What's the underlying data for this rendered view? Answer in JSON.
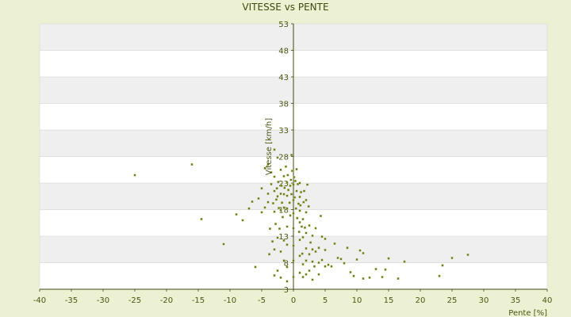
{
  "chart_data": {
    "type": "scatter",
    "title": "VITESSE vs PENTE",
    "xlabel": "Pente [%]",
    "ylabel": "Vitesse [km/h]",
    "xlim": [
      -40,
      40
    ],
    "ylim": [
      3,
      53
    ],
    "x_ticks": [
      "-40",
      "-35",
      "-30",
      "-25",
      "-20",
      "-15",
      "-10",
      "-5",
      "0",
      "5",
      "10",
      "15",
      "20",
      "25",
      "30",
      "35",
      "40"
    ],
    "y_ticks": [
      "3",
      "8",
      "13",
      "18",
      "23",
      "28",
      "33",
      "38",
      "43",
      "48",
      "53"
    ],
    "grid": "horizontal alternating bands",
    "legend": "none",
    "colors": {
      "background": "#ecf1d3",
      "plot_band_light": "#ffffff",
      "plot_band_shaded": "#efefef",
      "axis": "#3f4a0f",
      "marker": "#6a7a0e"
    },
    "points": [
      [
        -25,
        24.5
      ],
      [
        -16,
        26.5
      ],
      [
        -14.5,
        16.2
      ],
      [
        -11,
        11.5
      ],
      [
        -9,
        17.1
      ],
      [
        -8,
        16
      ],
      [
        -7,
        18.2
      ],
      [
        -6.5,
        19.5
      ],
      [
        -6,
        7.2
      ],
      [
        -5.5,
        20.1
      ],
      [
        -5,
        17.5
      ],
      [
        -5,
        22
      ],
      [
        -4.5,
        18.4
      ],
      [
        -4.5,
        25.8
      ],
      [
        -4,
        19.4
      ],
      [
        -4,
        21
      ],
      [
        -4,
        26.5
      ],
      [
        -3.8,
        9.6
      ],
      [
        -3.7,
        14.4
      ],
      [
        -3.5,
        22.8
      ],
      [
        -3.5,
        25
      ],
      [
        -3.3,
        12
      ],
      [
        -3.2,
        19.2
      ],
      [
        -3,
        5.6
      ],
      [
        -3,
        10.5
      ],
      [
        -3,
        17.6
      ],
      [
        -3,
        21.5
      ],
      [
        -3,
        24.2
      ],
      [
        -3,
        29.3
      ],
      [
        -2.8,
        15.3
      ],
      [
        -2.7,
        19.9
      ],
      [
        -2.6,
        22
      ],
      [
        -2.5,
        6.5
      ],
      [
        -2.5,
        12.7
      ],
      [
        -2.5,
        20.5
      ],
      [
        -2.5,
        27.8
      ],
      [
        -2.4,
        23.2
      ],
      [
        -2.3,
        18.3
      ],
      [
        -2.2,
        14.4
      ],
      [
        -2,
        5.2
      ],
      [
        -2,
        10.1
      ],
      [
        -2,
        17.9
      ],
      [
        -2,
        21
      ],
      [
        -2,
        25.5
      ],
      [
        -1.9,
        22.5
      ],
      [
        -1.8,
        19.3
      ],
      [
        -1.7,
        16.6
      ],
      [
        -1.5,
        8.4
      ],
      [
        -1.5,
        12.2
      ],
      [
        -1.5,
        18.4
      ],
      [
        -1.5,
        20.9
      ],
      [
        -1.5,
        24.3
      ],
      [
        -1.4,
        22.1
      ],
      [
        -1.2,
        26.1
      ],
      [
        -1,
        4.5
      ],
      [
        -1,
        7.2
      ],
      [
        -1,
        11.4
      ],
      [
        -1,
        14.8
      ],
      [
        -1,
        18.2
      ],
      [
        -1,
        20.6
      ],
      [
        -1,
        23.1
      ],
      [
        -0.9,
        24.5
      ],
      [
        -0.8,
        21.7
      ],
      [
        -0.6,
        19.3
      ],
      [
        -0.5,
        16.9
      ],
      [
        -0.5,
        22.5
      ],
      [
        -0.4,
        23.6
      ],
      [
        -0.3,
        20.9
      ],
      [
        -0.3,
        28.3
      ],
      [
        -0.2,
        25.3
      ],
      [
        0,
        5.3
      ],
      [
        0,
        8.4
      ],
      [
        0,
        11.2
      ],
      [
        0,
        14.5
      ],
      [
        0,
        17.3
      ],
      [
        0,
        19.8
      ],
      [
        0,
        22.7
      ],
      [
        0.1,
        24.1
      ],
      [
        0.2,
        20.3
      ],
      [
        0.3,
        23.4
      ],
      [
        0.4,
        18.2
      ],
      [
        0.5,
        21.5
      ],
      [
        0.5,
        25.6
      ],
      [
        0.6,
        16.4
      ],
      [
        0.7,
        22.8
      ],
      [
        0.8,
        19.1
      ],
      [
        0.9,
        13.8
      ],
      [
        1,
        6.1
      ],
      [
        1,
        9.3
      ],
      [
        1,
        12.3
      ],
      [
        1,
        15.6
      ],
      [
        1,
        17.8
      ],
      [
        1,
        20.4
      ],
      [
        1,
        23
      ],
      [
        1.1,
        18.8
      ],
      [
        1.2,
        21.3
      ],
      [
        1.3,
        14.8
      ],
      [
        1.4,
        9.7
      ],
      [
        1.5,
        5.3
      ],
      [
        1.5,
        7.7
      ],
      [
        1.5,
        12.8
      ],
      [
        1.5,
        16.2
      ],
      [
        1.6,
        19.4
      ],
      [
        1.7,
        21.5
      ],
      [
        1.8,
        14.6
      ],
      [
        2,
        5.8
      ],
      [
        2,
        8.4
      ],
      [
        2,
        10.7
      ],
      [
        2,
        13.6
      ],
      [
        2,
        17.5
      ],
      [
        2,
        19.8
      ],
      [
        2.2,
        22.7
      ],
      [
        2.4,
        18.6
      ],
      [
        2.5,
        6.5
      ],
      [
        2.5,
        9.6
      ],
      [
        2.5,
        15
      ],
      [
        2.7,
        11.8
      ],
      [
        3,
        4.8
      ],
      [
        3,
        8.2
      ],
      [
        3,
        10.5
      ],
      [
        3,
        13.1
      ],
      [
        3.3,
        7.3
      ],
      [
        3.5,
        10.1
      ],
      [
        3.5,
        14.5
      ],
      [
        4,
        5.8
      ],
      [
        4,
        8
      ],
      [
        4,
        10.8
      ],
      [
        4.3,
        16.8
      ],
      [
        4.5,
        8.5
      ],
      [
        4.5,
        12.9
      ],
      [
        5,
        7.3
      ],
      [
        5,
        10.4
      ],
      [
        5,
        12.5
      ],
      [
        5.5,
        7.6
      ],
      [
        6,
        7.3
      ],
      [
        6.5,
        11.6
      ],
      [
        7,
        8.9
      ],
      [
        7.5,
        8.7
      ],
      [
        8,
        7.9
      ],
      [
        8.5,
        10.8
      ],
      [
        9,
        6.2
      ],
      [
        9.5,
        5.5
      ],
      [
        10,
        8.6
      ],
      [
        10.5,
        10.3
      ],
      [
        11,
        5
      ],
      [
        11,
        9.8
      ],
      [
        12,
        5.2
      ],
      [
        13,
        6.8
      ],
      [
        14,
        5.3
      ],
      [
        14.5,
        6.7
      ],
      [
        15,
        8.8
      ],
      [
        16.5,
        5
      ],
      [
        17.5,
        8.2
      ],
      [
        23,
        5.5
      ],
      [
        23.5,
        7.5
      ],
      [
        25,
        8.9
      ],
      [
        27.5,
        9.5
      ]
    ]
  }
}
